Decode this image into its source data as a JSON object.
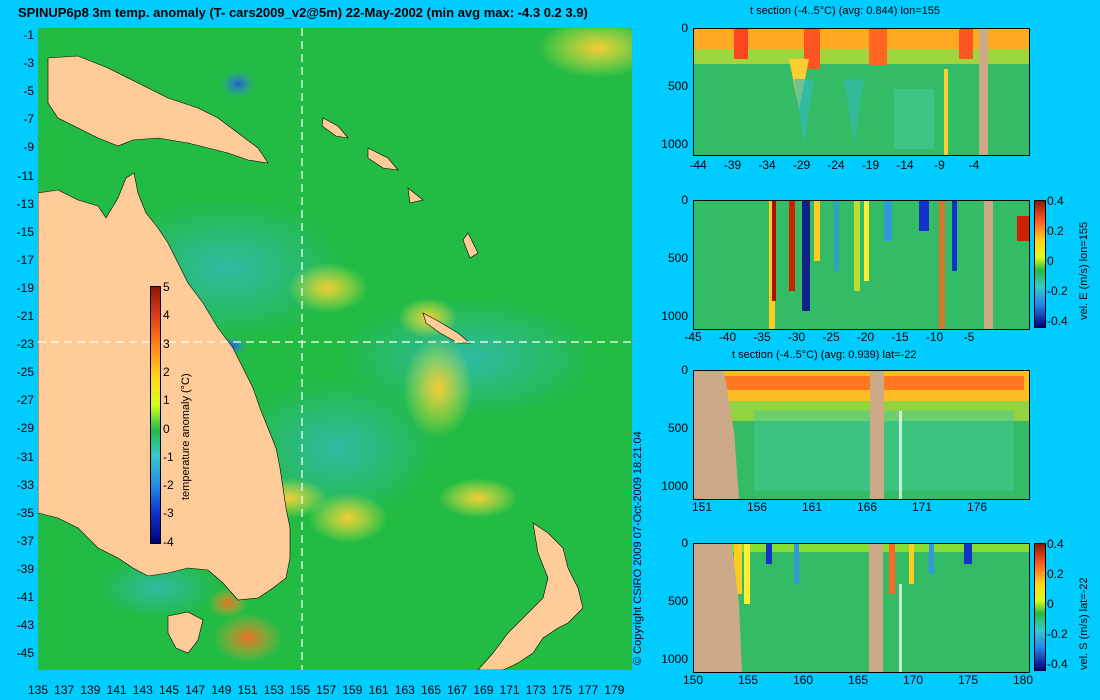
{
  "title": "SPINUP6p8 3m temp. anomaly (T- cars2009_v2@5m) 22-May-2002 (min avg max: -4.3 0.2 3.9)",
  "map": {
    "lat_ticks": [
      "-1",
      "-3",
      "-5",
      "-7",
      "-9",
      "-11",
      "-13",
      "-15",
      "-17",
      "-19",
      "-21",
      "-23",
      "-25",
      "-27",
      "-29",
      "-31",
      "-33",
      "-35",
      "-37",
      "-39",
      "-41",
      "-43",
      "-45"
    ],
    "lon_ticks": [
      "135",
      "137",
      "139",
      "141",
      "143",
      "145",
      "147",
      "149",
      "151",
      "153",
      "155",
      "157",
      "159",
      "161",
      "163",
      "165",
      "167",
      "169",
      "171",
      "173",
      "175",
      "177",
      "179"
    ],
    "colorbar": {
      "label": "temperature anomaly (°C)",
      "ticks": [
        "5",
        "4",
        "3",
        "2",
        "1",
        "0",
        "-1",
        "-2",
        "-3",
        "-4"
      ]
    },
    "ocean_color": "#22bb44",
    "land_color": "#ffcc99"
  },
  "copyright": "© Copyright CSIRO 2009   07-Oct-2009 18:21:04",
  "panels": [
    {
      "title": "t section (-4..5°C) (avg: 0.844) lon=155",
      "yticks": [
        "0",
        "500",
        "1000"
      ],
      "xticks": [
        "-44",
        "-39",
        "-34",
        "-29",
        "-24",
        "-19",
        "-14",
        "-9",
        "-4"
      ],
      "colorbar": null
    },
    {
      "title": "",
      "yticks": [
        "0",
        "500",
        "1000"
      ],
      "xticks": [
        "-45",
        "-40",
        "-35",
        "-30",
        "-25",
        "-20",
        "-15",
        "-10",
        "-5"
      ],
      "colorbar": {
        "label": "vel. E (m/s) lon=155",
        "ticks": [
          "0.4",
          "0.2",
          "0",
          "-0.2",
          "-0.4"
        ]
      }
    },
    {
      "title": "t section (-4..5°C) (avg: 0.939) lat=-22",
      "yticks": [
        "0",
        "500",
        "1000"
      ],
      "xticks": [
        "151",
        "156",
        "161",
        "166",
        "171",
        "176"
      ],
      "colorbar": null
    },
    {
      "title": "",
      "yticks": [
        "0",
        "500",
        "1000"
      ],
      "xticks": [
        "150",
        "155",
        "160",
        "165",
        "170",
        "175",
        "180"
      ],
      "colorbar": {
        "label": "vel. S (m/s) lat=-22",
        "ticks": [
          "0.4",
          "0.2",
          "0",
          "-0.2",
          "-0.4"
        ]
      }
    }
  ]
}
